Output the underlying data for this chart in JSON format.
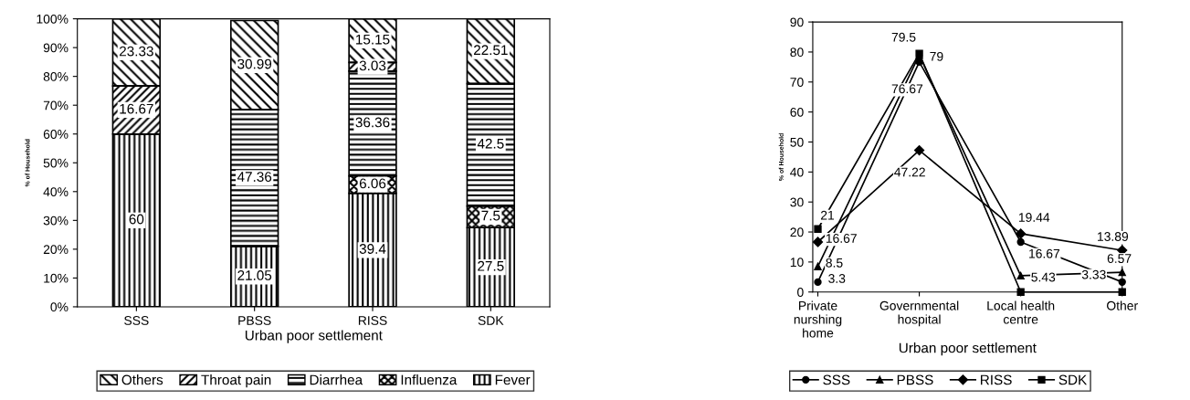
{
  "chart_data": [
    {
      "type": "bar",
      "stacked": true,
      "xlabel": "Urban poor settlement",
      "ylabel": "% of Household",
      "categories": [
        "SSS",
        "PBSS",
        "RISS",
        "SDK"
      ],
      "ylim": [
        0,
        100
      ],
      "yticks": [
        {
          "value": 0,
          "label": "0%"
        },
        {
          "value": 10,
          "label": "10%"
        },
        {
          "value": 20,
          "label": "20%"
        },
        {
          "value": 30,
          "label": "30%"
        },
        {
          "value": 40,
          "label": "40%"
        },
        {
          "value": 50,
          "label": "50%"
        },
        {
          "value": 60,
          "label": "60%"
        },
        {
          "value": 70,
          "label": "70%"
        },
        {
          "value": 80,
          "label": "80%"
        },
        {
          "value": 90,
          "label": "90%"
        },
        {
          "value": 100,
          "label": "100%"
        }
      ],
      "grid": false,
      "legend": "bottom",
      "series": [
        {
          "name": "Fever",
          "color": "#000000",
          "values": [
            60,
            21.05,
            39.4,
            27.5
          ],
          "value_labels": [
            "60",
            "21.05",
            "39.4",
            "27.5"
          ]
        },
        {
          "name": "Influenza",
          "color": "#000000",
          "values": [
            0,
            0,
            6.06,
            7.5
          ],
          "value_labels": [
            null,
            null,
            "6.06",
            "7.5"
          ]
        },
        {
          "name": "Diarrhea",
          "color": "#000000",
          "values": [
            0,
            47.36,
            36.36,
            42.5
          ],
          "value_labels": [
            null,
            "47.36",
            "36.36",
            "42.5"
          ]
        },
        {
          "name": "Throat pain",
          "color": "#000000",
          "values": [
            16.67,
            0,
            3.03,
            0
          ],
          "value_labels": [
            "16.67",
            null,
            "3.03",
            null
          ]
        },
        {
          "name": "Others",
          "color": "#000000",
          "values": [
            23.33,
            30.99,
            15.15,
            22.51
          ],
          "value_labels": [
            "23.33",
            "30.99",
            "15.15",
            "22.51"
          ]
        }
      ]
    },
    {
      "type": "line",
      "xlabel": "Urban poor settlement",
      "ylabel": "% of Household",
      "categories": [
        "Private\nnurshing\nhome",
        "Governmental\nhospital",
        "Local health\ncentre",
        "Other"
      ],
      "ylim": [
        0,
        90
      ],
      "yticks": [
        0,
        10,
        20,
        30,
        40,
        50,
        60,
        70,
        80,
        90
      ],
      "grid": false,
      "legend": "bottom",
      "series": [
        {
          "name": "SSS",
          "color": "#000000",
          "marker": "circle",
          "values": [
            3.3,
            76.67,
            16.67,
            3.33
          ],
          "value_labels": [
            "3.3",
            "76.67",
            "16.67",
            "3.33"
          ]
        },
        {
          "name": "PBSS",
          "color": "#000000",
          "marker": "triangle",
          "values": [
            8.5,
            79,
            5.43,
            6.57
          ],
          "value_labels": [
            "8.5",
            "79",
            "5.43",
            "6.57"
          ]
        },
        {
          "name": "RISS",
          "color": "#000000",
          "marker": "diamond",
          "values": [
            16.67,
            47.22,
            19.44,
            13.89
          ],
          "value_labels": [
            "16.67",
            "47.22",
            "19.44",
            "13.89"
          ]
        },
        {
          "name": "SDK",
          "color": "#000000",
          "marker": "square",
          "values": [
            21,
            79.5,
            0,
            0
          ],
          "value_labels": [
            "21",
            "79.5",
            null,
            null
          ]
        }
      ]
    }
  ]
}
